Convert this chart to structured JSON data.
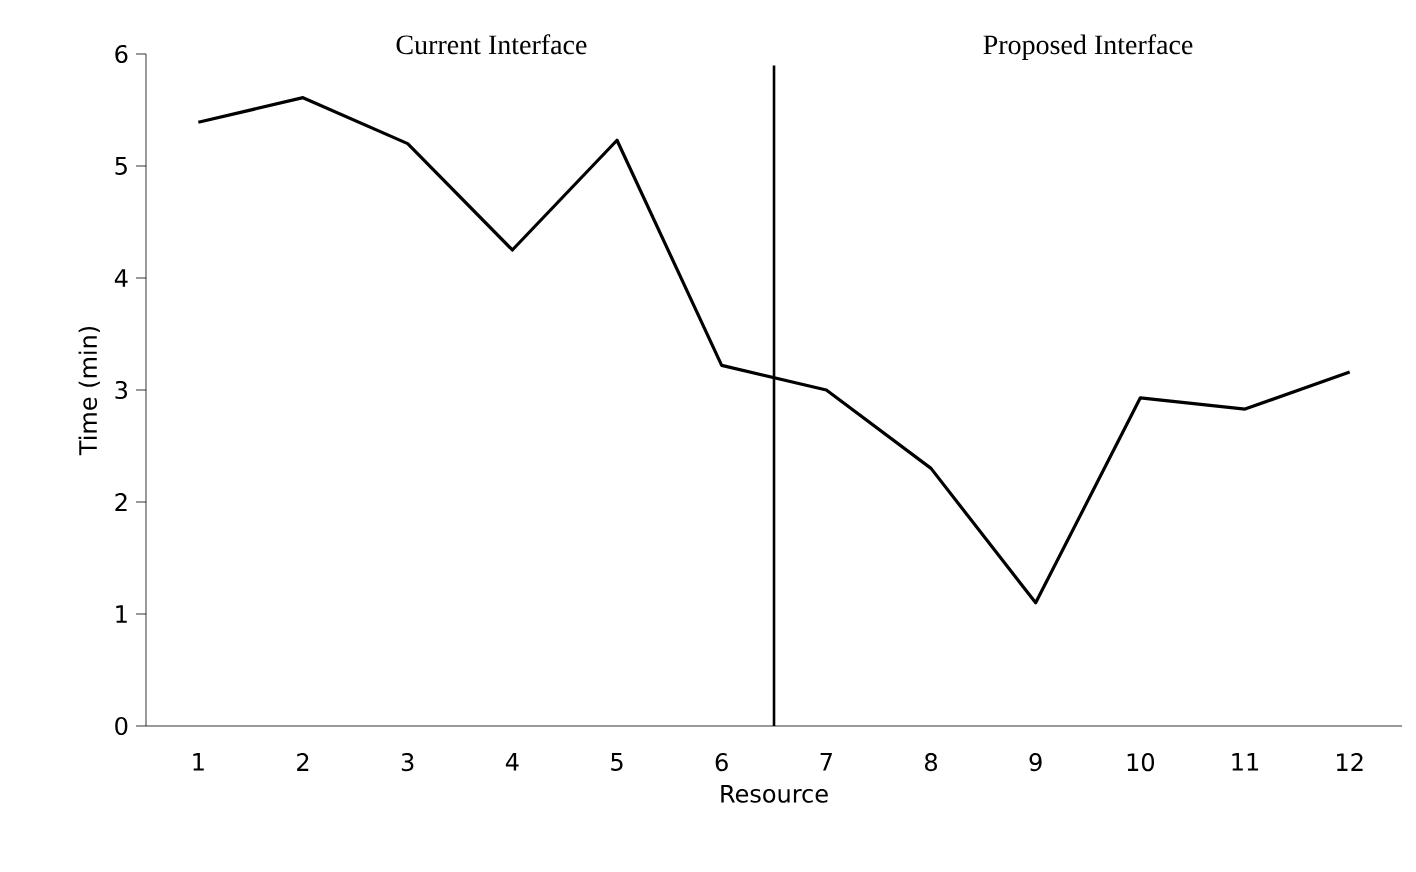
{
  "chart_data": {
    "type": "line",
    "xlabel": "Resource",
    "ylabel": "Time (min)",
    "categories": [
      "1",
      "2",
      "3",
      "4",
      "5",
      "6",
      "7",
      "8",
      "9",
      "10",
      "11",
      "12"
    ],
    "series": [
      {
        "color": "#000000",
        "values": [
          5.39,
          5.61,
          5.2,
          4.25,
          5.23,
          3.22,
          3.0,
          2.3,
          1.1,
          2.93,
          2.83,
          3.16
        ]
      }
    ],
    "ylim": [
      0,
      6
    ],
    "yticks": [
      0,
      1,
      2,
      3,
      4,
      5,
      6
    ],
    "annotations": [
      "Current Interface",
      "Proposed Interface"
    ],
    "marker": "none",
    "line_style": "solid"
  }
}
